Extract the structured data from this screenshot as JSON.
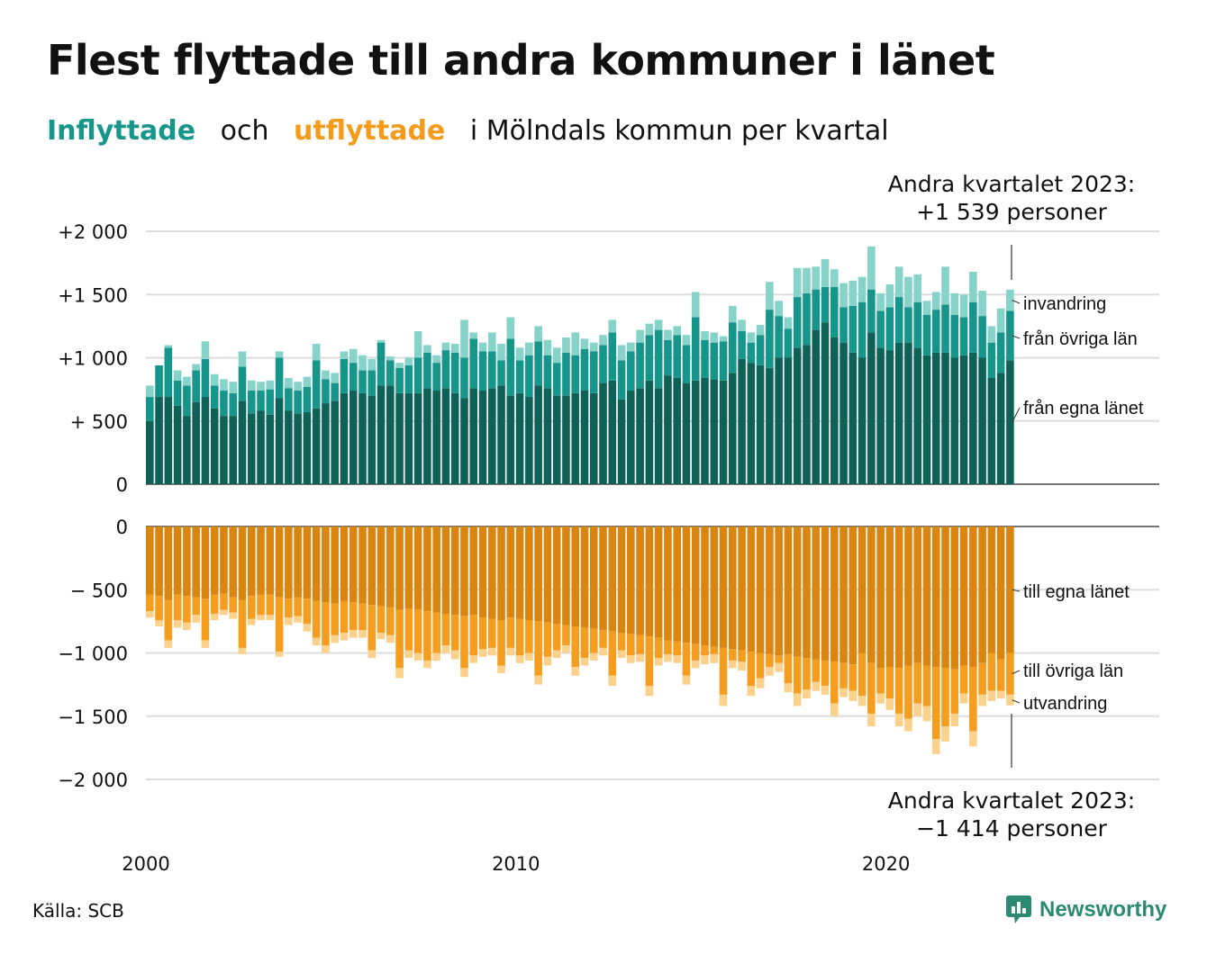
{
  "title": "Flest flyttade till andra kommuner i länet",
  "subtitle": {
    "inflyttade": "Inflyttade",
    "och": "och",
    "utflyttade": "utflyttade",
    "rest": "i Mölndals  kommun  per  kvartal"
  },
  "source": "Källa: SCB",
  "logo": "Newsworthy",
  "colors": {
    "in_own": "#0e6157",
    "in_other": "#16968a",
    "in_immigration": "#86d3c9",
    "out_own": "#d9850f",
    "out_other": "#f59d1f",
    "out_emigration": "#fbd18c",
    "accent_in": "#17968a",
    "accent_out": "#f59b1c"
  },
  "chart_data": {
    "type": "bar",
    "stacked": true,
    "x_start": "2000 Q1",
    "x_end": "2023 Q2",
    "x_ticks": [
      "2000",
      "2010",
      "2020"
    ],
    "top_panel": {
      "y_ticks": [
        "+2 000",
        "+1 500",
        "+1 000",
        "+  500",
        "0"
      ],
      "ylim": [
        0,
        2000
      ],
      "series_labels": [
        "invandring",
        "från övriga län",
        "från egna länet"
      ],
      "annotation": {
        "line1": "Andra kvartalet 2023:",
        "line2": "+1 539 personer"
      },
      "own": [
        500,
        690,
        690,
        620,
        540,
        650,
        690,
        600,
        540,
        540,
        660,
        560,
        580,
        550,
        680,
        580,
        560,
        570,
        600,
        640,
        660,
        720,
        740,
        720,
        700,
        780,
        780,
        720,
        720,
        720,
        760,
        740,
        760,
        720,
        680,
        760,
        740,
        760,
        780,
        700,
        720,
        690,
        780,
        760,
        700,
        700,
        720,
        740,
        720,
        800,
        820,
        670,
        740,
        760,
        820,
        760,
        860,
        840,
        800,
        820,
        840,
        830,
        820,
        880,
        990,
        960,
        940,
        920,
        1000,
        1000,
        1080,
        1100,
        1220,
        1280,
        1160,
        1120,
        1040,
        1000,
        1200,
        1080,
        1060,
        1120,
        1120,
        1080,
        1020,
        1040,
        1040,
        1000,
        1020,
        1040,
        1000,
        840,
        880,
        980
      ],
      "total_in": [
        780,
        940,
        1100,
        900,
        850,
        950,
        1130,
        870,
        830,
        810,
        1050,
        820,
        810,
        820,
        1050,
        840,
        810,
        850,
        1110,
        900,
        880,
        1050,
        1070,
        1020,
        990,
        1140,
        1010,
        960,
        1000,
        1210,
        1100,
        1020,
        1120,
        1110,
        1300,
        1200,
        1120,
        1200,
        1110,
        1320,
        1080,
        1120,
        1250,
        1140,
        1080,
        1160,
        1200,
        1150,
        1120,
        1180,
        1300,
        1100,
        1120,
        1220,
        1270,
        1300,
        1220,
        1250,
        1180,
        1520,
        1210,
        1200,
        1170,
        1410,
        1300,
        1200,
        1260,
        1600,
        1450,
        1320,
        1710,
        1710,
        1720,
        1780,
        1700,
        1590,
        1610,
        1640,
        1880,
        1510,
        1580,
        1720,
        1640,
        1660,
        1450,
        1520,
        1720,
        1510,
        1500,
        1680,
        1530,
        1250,
        1390,
        1539
      ],
      "with_other": [
        690,
        940,
        1080,
        820,
        780,
        900,
        990,
        780,
        740,
        720,
        930,
        740,
        740,
        750,
        1000,
        760,
        740,
        770,
        980,
        830,
        800,
        990,
        960,
        900,
        900,
        1120,
        980,
        920,
        940,
        1000,
        1040,
        960,
        1060,
        1040,
        1000,
        1150,
        1050,
        1050,
        980,
        1150,
        980,
        1020,
        1130,
        1020,
        960,
        1040,
        1020,
        1070,
        1050,
        1100,
        1200,
        980,
        1050,
        1120,
        1180,
        1220,
        1140,
        1180,
        1100,
        1320,
        1140,
        1120,
        1130,
        1280,
        1210,
        1120,
        1180,
        1380,
        1330,
        1230,
        1480,
        1510,
        1540,
        1560,
        1560,
        1400,
        1410,
        1440,
        1540,
        1370,
        1400,
        1480,
        1400,
        1440,
        1340,
        1380,
        1420,
        1340,
        1320,
        1440,
        1330,
        1120,
        1200,
        1370
      ]
    },
    "bottom_panel": {
      "y_ticks": [
        "0",
        "−  500",
        "−1 000",
        "−1 500",
        "−2 000"
      ],
      "ylim": [
        -2000,
        0
      ],
      "series_labels": [
        "till egna länet",
        "till övriga län",
        "utvandring"
      ],
      "annotation": {
        "line1": "Andra kvartalet 2023:",
        "line2": "−1 414 personer"
      },
      "own": [
        540,
        550,
        580,
        540,
        550,
        560,
        570,
        540,
        530,
        560,
        580,
        550,
        540,
        540,
        560,
        570,
        560,
        570,
        590,
        600,
        610,
        590,
        600,
        610,
        620,
        630,
        640,
        660,
        650,
        660,
        670,
        680,
        690,
        700,
        710,
        700,
        720,
        730,
        740,
        720,
        730,
        740,
        750,
        760,
        770,
        780,
        790,
        800,
        810,
        820,
        830,
        840,
        850,
        860,
        870,
        880,
        900,
        910,
        920,
        930,
        940,
        950,
        960,
        970,
        980,
        990,
        1000,
        1010,
        1020,
        1010,
        1030,
        1040,
        1050,
        1060,
        1070,
        1080,
        1090,
        1000,
        1080,
        1120,
        1110,
        1120,
        1100,
        1080,
        1100,
        1110,
        1120,
        1130,
        1100,
        1110,
        1080,
        1000,
        1050,
        1000
      ],
      "total_out": [
        720,
        790,
        960,
        800,
        820,
        760,
        960,
        740,
        700,
        730,
        1010,
        780,
        740,
        740,
        1030,
        780,
        760,
        830,
        940,
        1000,
        920,
        900,
        880,
        880,
        1040,
        890,
        920,
        1200,
        1040,
        1060,
        1120,
        1060,
        1000,
        1050,
        1190,
        1080,
        1030,
        1020,
        1160,
        1020,
        1080,
        1060,
        1250,
        1100,
        1040,
        1000,
        1180,
        1100,
        1060,
        1020,
        1260,
        1040,
        1080,
        1070,
        1340,
        1100,
        1070,
        1080,
        1250,
        1120,
        1090,
        1080,
        1420,
        1120,
        1140,
        1340,
        1280,
        1180,
        1150,
        1310,
        1420,
        1360,
        1300,
        1330,
        1500,
        1350,
        1380,
        1420,
        1580,
        1400,
        1450,
        1580,
        1620,
        1500,
        1540,
        1800,
        1700,
        1580,
        1400,
        1740,
        1420,
        1380,
        1360,
        1414
      ],
      "with_other": [
        670,
        740,
        900,
        740,
        760,
        700,
        900,
        690,
        660,
        680,
        960,
        730,
        700,
        700,
        990,
        720,
        710,
        770,
        880,
        940,
        860,
        840,
        820,
        820,
        980,
        840,
        860,
        1120,
        980,
        1000,
        1060,
        1000,
        940,
        980,
        1120,
        1020,
        970,
        960,
        1100,
        960,
        1020,
        1000,
        1180,
        1030,
        980,
        940,
        1110,
        1040,
        1000,
        960,
        1180,
        980,
        1020,
        1010,
        1260,
        1040,
        1010,
        1020,
        1180,
        1060,
        1020,
        1010,
        1330,
        1060,
        1070,
        1260,
        1200,
        1110,
        1080,
        1240,
        1320,
        1290,
        1230,
        1260,
        1400,
        1280,
        1300,
        1340,
        1480,
        1320,
        1360,
        1480,
        1520,
        1400,
        1420,
        1680,
        1580,
        1480,
        1320,
        1620,
        1330,
        1300,
        1300,
        1330
      ]
    }
  }
}
